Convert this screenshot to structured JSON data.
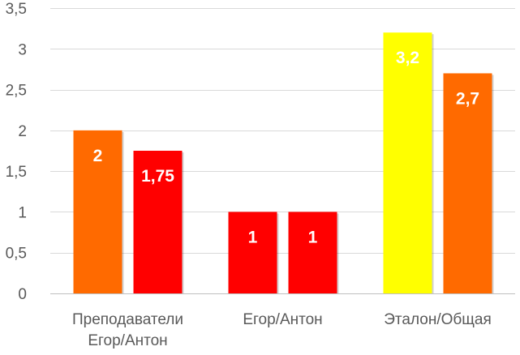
{
  "chart_data": {
    "type": "bar",
    "title": "",
    "xlabel": "",
    "ylabel": "",
    "ylim": [
      0,
      3.5
    ],
    "yticks": [
      0,
      0.5,
      1,
      1.5,
      2,
      2.5,
      3,
      3.5
    ],
    "ytick_labels": [
      "0",
      "0,5",
      "1",
      "1,5",
      "2",
      "2,5",
      "3",
      "3,5"
    ],
    "grid": true,
    "legend": "none",
    "groups": [
      {
        "label_lines": [
          "Преподаватели",
          "Егор/Антон"
        ],
        "bars": [
          {
            "value": 2,
            "label": "2",
            "color": "#FF6A00"
          },
          {
            "value": 1.75,
            "label": "1,75",
            "color": "#FF0000"
          }
        ]
      },
      {
        "label_lines": [
          "Егор/Антон"
        ],
        "bars": [
          {
            "value": 1,
            "label": "1",
            "color": "#FF0000"
          },
          {
            "value": 1,
            "label": "1",
            "color": "#FF0000"
          }
        ]
      },
      {
        "label_lines": [
          "Эталон/Общая"
        ],
        "bars": [
          {
            "value": 3.2,
            "label": "3,2",
            "color": "#FFFF00"
          },
          {
            "value": 2.7,
            "label": "2,7",
            "color": "#FF6A00"
          }
        ]
      }
    ]
  }
}
